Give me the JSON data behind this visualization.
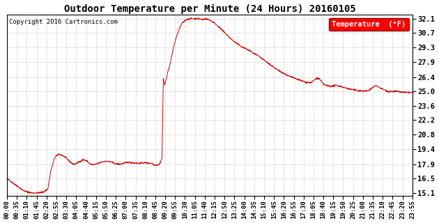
{
  "title": "Outdoor Temperature per Minute (24 Hours) 20160105",
  "copyright_text": "Copyright 2016 Cartronics.com",
  "legend_label": "Temperature  (°F)",
  "line_color": "#cc0000",
  "background_color": "#ffffff",
  "plot_bg_color": "#ffffff",
  "yticks": [
    15.1,
    16.5,
    17.9,
    19.4,
    20.8,
    22.2,
    23.6,
    25.0,
    26.4,
    27.9,
    29.3,
    30.7,
    32.1
  ],
  "ylim": [
    14.8,
    32.5
  ],
  "xtick_labels": [
    "00:00",
    "00:35",
    "01:10",
    "01:45",
    "02:20",
    "02:55",
    "03:30",
    "04:05",
    "04:40",
    "05:15",
    "05:50",
    "06:25",
    "07:00",
    "07:35",
    "08:10",
    "08:45",
    "09:20",
    "09:55",
    "10:30",
    "11:05",
    "11:40",
    "12:15",
    "12:50",
    "13:25",
    "14:00",
    "14:35",
    "15:10",
    "15:45",
    "16:20",
    "16:55",
    "17:30",
    "18:05",
    "18:40",
    "19:15",
    "19:50",
    "20:25",
    "21:00",
    "21:35",
    "22:10",
    "22:45",
    "23:20",
    "23:55"
  ],
  "keypoints": [
    [
      0,
      16.5
    ],
    [
      30,
      15.9
    ],
    [
      60,
      15.3
    ],
    [
      90,
      15.1
    ],
    [
      110,
      15.1
    ],
    [
      130,
      15.2
    ],
    [
      145,
      15.5
    ],
    [
      155,
      17.2
    ],
    [
      170,
      18.6
    ],
    [
      185,
      18.9
    ],
    [
      200,
      18.7
    ],
    [
      210,
      18.5
    ],
    [
      225,
      18.1
    ],
    [
      235,
      17.9
    ],
    [
      245,
      17.95
    ],
    [
      260,
      18.2
    ],
    [
      270,
      18.35
    ],
    [
      285,
      18.2
    ],
    [
      295,
      17.9
    ],
    [
      310,
      17.85
    ],
    [
      325,
      18.0
    ],
    [
      340,
      18.15
    ],
    [
      355,
      18.2
    ],
    [
      370,
      18.1
    ],
    [
      385,
      17.95
    ],
    [
      400,
      17.9
    ],
    [
      415,
      18.0
    ],
    [
      430,
      18.1
    ],
    [
      445,
      18.05
    ],
    [
      460,
      18.0
    ],
    [
      475,
      18.0
    ],
    [
      490,
      18.05
    ],
    [
      505,
      18.0
    ],
    [
      515,
      18.0
    ],
    [
      520,
      17.85
    ],
    [
      525,
      17.85
    ],
    [
      530,
      17.85
    ],
    [
      540,
      17.85
    ],
    [
      550,
      18.5
    ],
    [
      555,
      26.3
    ],
    [
      560,
      25.6
    ],
    [
      565,
      26.2
    ],
    [
      570,
      26.8
    ],
    [
      580,
      27.8
    ],
    [
      590,
      29.2
    ],
    [
      600,
      30.2
    ],
    [
      610,
      31.0
    ],
    [
      620,
      31.6
    ],
    [
      635,
      32.0
    ],
    [
      650,
      32.1
    ],
    [
      665,
      32.1
    ],
    [
      680,
      32.1
    ],
    [
      695,
      32.0
    ],
    [
      705,
      32.1
    ],
    [
      715,
      32.0
    ],
    [
      725,
      31.9
    ],
    [
      740,
      31.6
    ],
    [
      755,
      31.2
    ],
    [
      770,
      30.8
    ],
    [
      785,
      30.4
    ],
    [
      800,
      30.0
    ],
    [
      815,
      29.7
    ],
    [
      830,
      29.4
    ],
    [
      845,
      29.2
    ],
    [
      860,
      29.0
    ],
    [
      875,
      28.7
    ],
    [
      890,
      28.5
    ],
    [
      905,
      28.2
    ],
    [
      920,
      27.9
    ],
    [
      940,
      27.5
    ],
    [
      960,
      27.1
    ],
    [
      980,
      26.8
    ],
    [
      1000,
      26.5
    ],
    [
      1020,
      26.3
    ],
    [
      1040,
      26.1
    ],
    [
      1060,
      25.9
    ],
    [
      1080,
      25.85
    ],
    [
      1090,
      26.1
    ],
    [
      1100,
      26.3
    ],
    [
      1110,
      26.2
    ],
    [
      1115,
      26.0
    ],
    [
      1120,
      25.8
    ],
    [
      1130,
      25.6
    ],
    [
      1140,
      25.55
    ],
    [
      1150,
      25.5
    ],
    [
      1160,
      25.55
    ],
    [
      1170,
      25.6
    ],
    [
      1175,
      25.55
    ],
    [
      1185,
      25.5
    ],
    [
      1200,
      25.35
    ],
    [
      1220,
      25.2
    ],
    [
      1240,
      25.1
    ],
    [
      1260,
      25.05
    ],
    [
      1280,
      25.05
    ],
    [
      1295,
      25.3
    ],
    [
      1305,
      25.55
    ],
    [
      1315,
      25.5
    ],
    [
      1325,
      25.35
    ],
    [
      1335,
      25.2
    ],
    [
      1345,
      25.1
    ],
    [
      1355,
      25.0
    ],
    [
      1365,
      25.0
    ],
    [
      1375,
      25.0
    ],
    [
      1385,
      25.0
    ],
    [
      1395,
      24.95
    ],
    [
      1405,
      24.92
    ],
    [
      1415,
      24.9
    ],
    [
      1425,
      24.9
    ],
    [
      1435,
      24.88
    ],
    [
      1439,
      24.88
    ]
  ]
}
